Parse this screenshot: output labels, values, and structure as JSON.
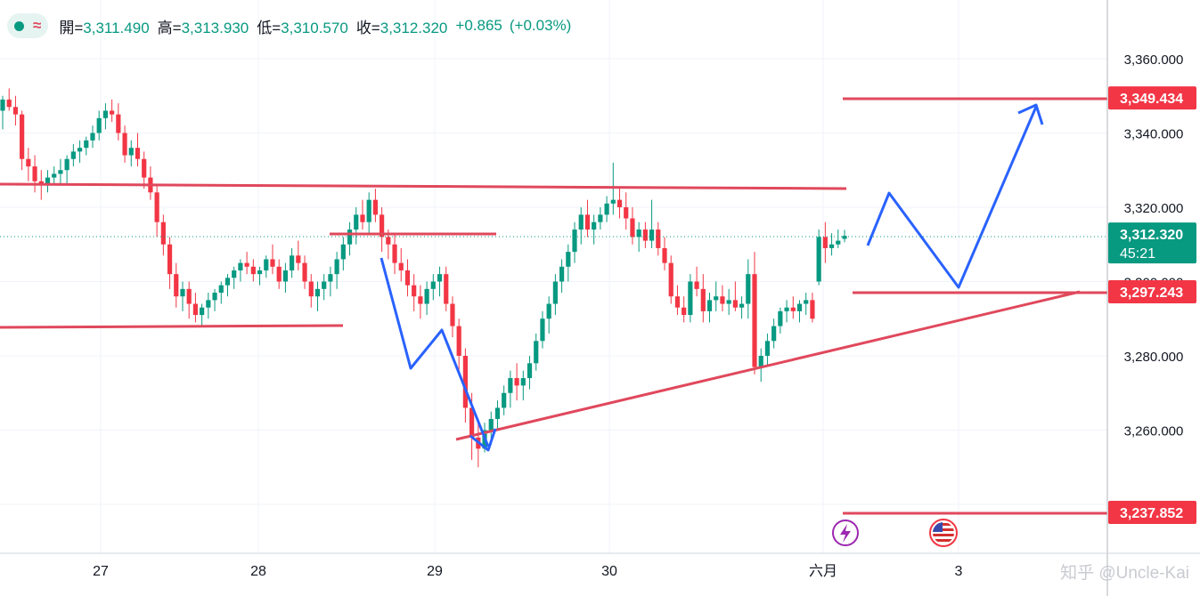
{
  "ohlc": {
    "status_icon": "green-dot",
    "indicator_icon": "approx-wave-icon",
    "open_label": "開=",
    "open": "3,311.490",
    "high_label": "高=",
    "high": "3,313.930",
    "low_label": "低=",
    "low": "3,310.570",
    "close_label": "收=",
    "close": "3,312.320",
    "change": "+0.865",
    "change_pct": "(+0.03%)"
  },
  "watermark": "知乎 @Uncle-Kai",
  "colors": {
    "up": "#089981",
    "down": "#f23645",
    "line": "#e0485c",
    "arrow": "#2962ff",
    "grid": "#f0f3fa"
  },
  "chart_data": {
    "type": "candlestick",
    "y_ticks": [
      "3,360.000",
      "3,340.000",
      "3,320.000",
      "3,300.000",
      "3,280.000",
      "3,260.000",
      "3,240.000"
    ],
    "x_ticks": [
      "27",
      "28",
      "29",
      "30",
      "六月",
      "3"
    ],
    "ylim": [
      3232,
      3374
    ],
    "grid": true,
    "price_labels": [
      {
        "text": "3,349.434",
        "style": "red"
      },
      {
        "text": "3,312.320",
        "sub": "45:21",
        "style": "green"
      },
      {
        "text": "3,297.243",
        "style": "red"
      },
      {
        "text": "3,237.852",
        "style": "red"
      }
    ],
    "candles": [
      [
        3346,
        3350,
        3341,
        3349
      ],
      [
        3349,
        3352,
        3346,
        3347
      ],
      [
        3347,
        3350,
        3342,
        3345
      ],
      [
        3345,
        3346,
        3330,
        3333
      ],
      [
        3333,
        3336,
        3327,
        3331
      ],
      [
        3331,
        3334,
        3324,
        3327
      ],
      [
        3327,
        3330,
        3322,
        3326
      ],
      [
        3326,
        3330,
        3324,
        3328
      ],
      [
        3328,
        3331,
        3326,
        3329
      ],
      [
        3329,
        3333,
        3326,
        3330
      ],
      [
        3330,
        3334,
        3326,
        3333
      ],
      [
        3333,
        3337,
        3331,
        3335
      ],
      [
        3335,
        3338,
        3332,
        3336
      ],
      [
        3336,
        3339,
        3334,
        3338
      ],
      [
        3338,
        3342,
        3336,
        3340
      ],
      [
        3340,
        3346,
        3338,
        3344
      ],
      [
        3344,
        3348,
        3341,
        3346
      ],
      [
        3346,
        3349,
        3343,
        3345
      ],
      [
        3345,
        3348,
        3338,
        3340
      ],
      [
        3340,
        3342,
        3332,
        3334
      ],
      [
        3334,
        3338,
        3331,
        3336
      ],
      [
        3336,
        3340,
        3331,
        3333
      ],
      [
        3333,
        3335,
        3325,
        3328
      ],
      [
        3328,
        3331,
        3322,
        3324
      ],
      [
        3324,
        3326,
        3312,
        3316
      ],
      [
        3316,
        3318,
        3307,
        3310
      ],
      [
        3310,
        3312,
        3298,
        3302
      ],
      [
        3302,
        3305,
        3293,
        3296
      ],
      [
        3296,
        3300,
        3292,
        3298
      ],
      [
        3298,
        3300,
        3290,
        3294
      ],
      [
        3294,
        3297,
        3289,
        3291
      ],
      [
        3291,
        3294,
        3288,
        3293
      ],
      [
        3293,
        3297,
        3290,
        3295
      ],
      [
        3295,
        3298,
        3292,
        3297
      ],
      [
        3297,
        3300,
        3294,
        3299
      ],
      [
        3299,
        3302,
        3296,
        3301
      ],
      [
        3301,
        3304,
        3298,
        3303
      ],
      [
        3303,
        3306,
        3300,
        3305
      ],
      [
        3305,
        3308,
        3302,
        3304
      ],
      [
        3304,
        3306,
        3300,
        3302
      ],
      [
        3302,
        3304,
        3299,
        3303
      ],
      [
        3303,
        3307,
        3301,
        3306
      ],
      [
        3306,
        3310,
        3302,
        3304
      ],
      [
        3304,
        3306,
        3298,
        3300
      ],
      [
        3300,
        3305,
        3297,
        3303
      ],
      [
        3303,
        3309,
        3301,
        3307
      ],
      [
        3307,
        3311,
        3303,
        3305
      ],
      [
        3305,
        3307,
        3298,
        3300
      ],
      [
        3300,
        3302,
        3293,
        3296
      ],
      [
        3296,
        3300,
        3292,
        3298
      ],
      [
        3298,
        3302,
        3295,
        3300
      ],
      [
        3300,
        3304,
        3296,
        3302
      ],
      [
        3302,
        3308,
        3298,
        3306
      ],
      [
        3306,
        3312,
        3303,
        3310
      ],
      [
        3310,
        3316,
        3307,
        3314
      ],
      [
        3314,
        3320,
        3310,
        3318
      ],
      [
        3318,
        3322,
        3314,
        3316
      ],
      [
        3316,
        3324,
        3313,
        3322
      ],
      [
        3322,
        3325,
        3316,
        3318
      ],
      [
        3318,
        3320,
        3308,
        3312
      ],
      [
        3312,
        3314,
        3306,
        3310
      ],
      [
        3310,
        3313,
        3302,
        3305
      ],
      [
        3305,
        3309,
        3300,
        3303
      ],
      [
        3303,
        3306,
        3296,
        3299
      ],
      [
        3299,
        3302,
        3292,
        3296
      ],
      [
        3296,
        3299,
        3290,
        3294
      ],
      [
        3294,
        3300,
        3291,
        3298
      ],
      [
        3298,
        3302,
        3295,
        3300
      ],
      [
        3300,
        3304,
        3296,
        3302
      ],
      [
        3302,
        3304,
        3292,
        3294
      ],
      [
        3294,
        3296,
        3285,
        3288
      ],
      [
        3288,
        3290,
        3276,
        3280
      ],
      [
        3280,
        3282,
        3262,
        3266
      ],
      [
        3266,
        3270,
        3252,
        3258
      ],
      [
        3258,
        3262,
        3250,
        3255
      ],
      [
        3255,
        3262,
        3254,
        3260
      ],
      [
        3260,
        3265,
        3256,
        3263
      ],
      [
        3263,
        3268,
        3260,
        3266
      ],
      [
        3266,
        3272,
        3264,
        3270
      ],
      [
        3270,
        3276,
        3266,
        3274
      ],
      [
        3274,
        3278,
        3268,
        3272
      ],
      [
        3272,
        3276,
        3268,
        3274
      ],
      [
        3274,
        3280,
        3271,
        3278
      ],
      [
        3278,
        3286,
        3276,
        3284
      ],
      [
        3284,
        3292,
        3282,
        3290
      ],
      [
        3290,
        3296,
        3286,
        3294
      ],
      [
        3294,
        3302,
        3291,
        3300
      ],
      [
        3300,
        3306,
        3297,
        3304
      ],
      [
        3304,
        3310,
        3300,
        3308
      ],
      [
        3308,
        3316,
        3305,
        3314
      ],
      [
        3314,
        3320,
        3310,
        3318
      ],
      [
        3318,
        3322,
        3312,
        3314
      ],
      [
        3314,
        3318,
        3310,
        3316
      ],
      [
        3316,
        3320,
        3314,
        3318
      ],
      [
        3318,
        3323,
        3316,
        3321
      ],
      [
        3321,
        3332,
        3318,
        3322
      ],
      [
        3322,
        3325,
        3317,
        3320
      ],
      [
        3320,
        3324,
        3314,
        3317
      ],
      [
        3317,
        3320,
        3310,
        3312
      ],
      [
        3312,
        3316,
        3308,
        3314
      ],
      [
        3314,
        3316,
        3309,
        3311
      ],
      [
        3311,
        3322,
        3309,
        3314
      ],
      [
        3314,
        3316,
        3307,
        3309
      ],
      [
        3309,
        3312,
        3303,
        3305
      ],
      [
        3305,
        3307,
        3294,
        3296
      ],
      [
        3296,
        3299,
        3291,
        3293
      ],
      [
        3293,
        3296,
        3289,
        3291
      ],
      [
        3291,
        3302,
        3289,
        3300
      ],
      [
        3300,
        3304,
        3296,
        3298
      ],
      [
        3298,
        3302,
        3289,
        3292
      ],
      [
        3292,
        3297,
        3289,
        3295
      ],
      [
        3295,
        3300,
        3292,
        3296
      ],
      [
        3296,
        3299,
        3292,
        3294
      ],
      [
        3294,
        3298,
        3291,
        3295
      ],
      [
        3295,
        3300,
        3292,
        3293
      ],
      [
        3293,
        3296,
        3290,
        3294
      ],
      [
        3294,
        3306,
        3290,
        3302
      ],
      [
        3302,
        3308,
        3275,
        3277
      ],
      [
        3277,
        3282,
        3273,
        3280
      ],
      [
        3280,
        3286,
        3277,
        3284
      ],
      [
        3284,
        3290,
        3282,
        3288
      ],
      [
        3288,
        3293,
        3286,
        3292
      ],
      [
        3292,
        3295,
        3289,
        3293
      ],
      [
        3293,
        3296,
        3290,
        3292
      ],
      [
        3292,
        3295,
        3289,
        3294
      ],
      [
        3294,
        3297,
        3291,
        3295
      ],
      [
        3295,
        3297,
        3289,
        3290
      ],
      [
        3300,
        3314,
        3299,
        3312
      ],
      [
        3312,
        3316,
        3305,
        3309
      ],
      [
        3309,
        3313,
        3307,
        3310
      ],
      [
        3310,
        3314,
        3309,
        3311
      ],
      [
        3311.49,
        3313.93,
        3310.57,
        3312.32
      ]
    ]
  }
}
